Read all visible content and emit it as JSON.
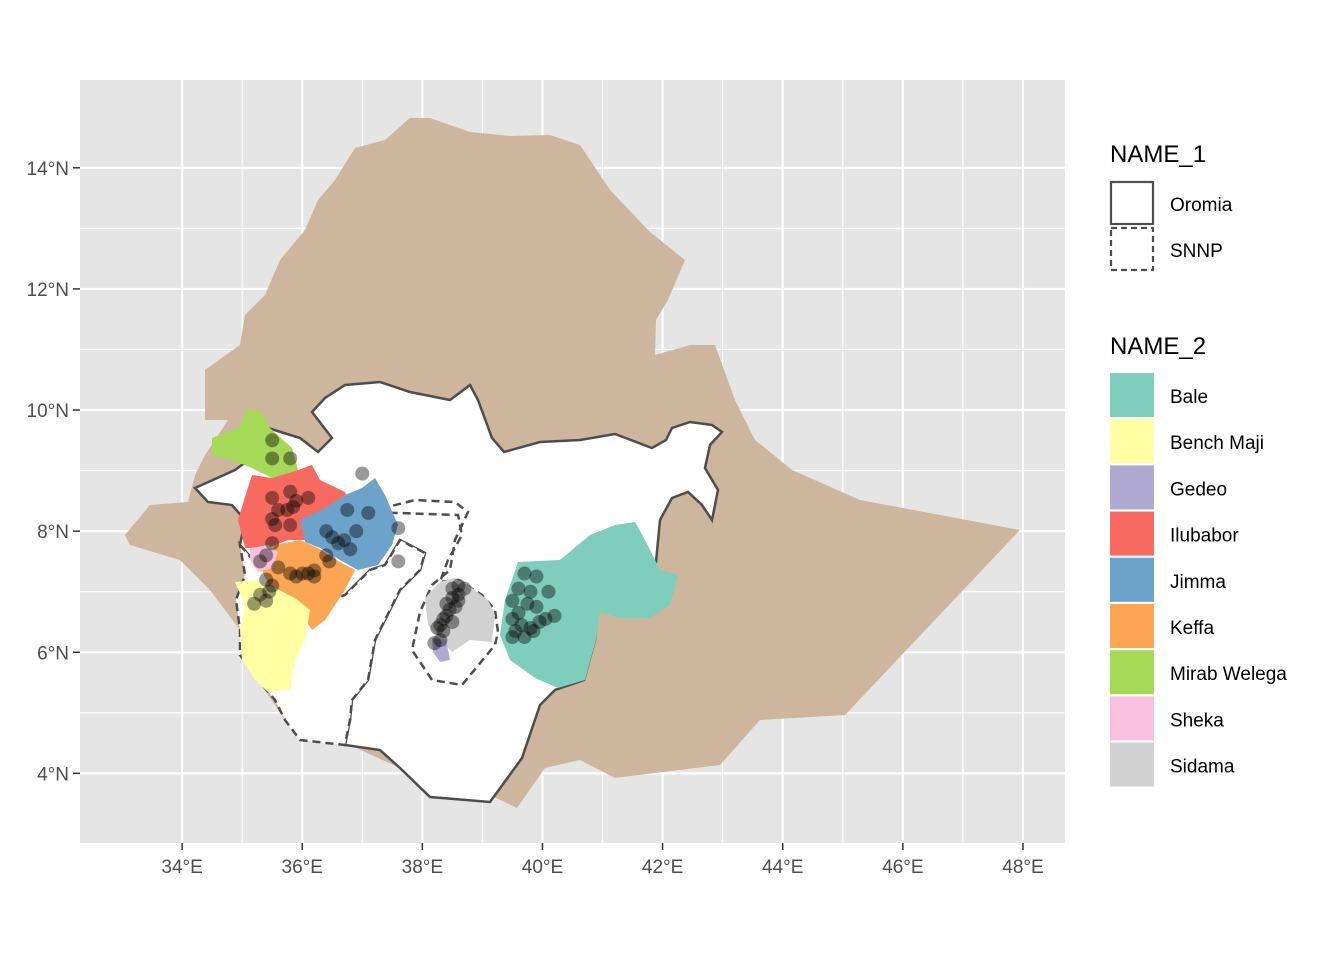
{
  "map": {
    "region": "Ethiopia",
    "lon_range": [
      32.3,
      48.7
    ],
    "lat_range": [
      2.85,
      15.45
    ],
    "x_ticks": [
      {
        "value": 34,
        "label": "34°E"
      },
      {
        "value": 36,
        "label": "36°E"
      },
      {
        "value": 38,
        "label": "38°E"
      },
      {
        "value": 40,
        "label": "40°E"
      },
      {
        "value": 42,
        "label": "42°E"
      },
      {
        "value": 44,
        "label": "44°E"
      },
      {
        "value": 46,
        "label": "46°E"
      },
      {
        "value": 48,
        "label": "48°E"
      }
    ],
    "y_ticks": [
      {
        "value": 4,
        "label": "4°N"
      },
      {
        "value": 6,
        "label": "6°N"
      },
      {
        "value": 8,
        "label": "8°N"
      },
      {
        "value": 10,
        "label": "10°N"
      },
      {
        "value": 12,
        "label": "12°N"
      },
      {
        "value": 14,
        "label": "14°N"
      }
    ],
    "colors": {
      "panel": "#e5e5e5",
      "grid": "#ffffff",
      "country": "#cdb59e",
      "region_fill": "#ffffff",
      "region_border": "#4d4d4d",
      "points": "#000000"
    }
  },
  "legend": {
    "name1": {
      "title": "NAME_1",
      "items": [
        {
          "label": "Oromia",
          "linetype": "solid"
        },
        {
          "label": "SNNP",
          "linetype": "dashed"
        }
      ]
    },
    "name2": {
      "title": "NAME_2",
      "items": [
        {
          "label": "Bale",
          "color": "#7fcdbb"
        },
        {
          "label": "Bench Maji",
          "color": "#ffffa3"
        },
        {
          "label": "Gedeo",
          "color": "#b0aad2"
        },
        {
          "label": "Ilubabor",
          "color": "#f8695f"
        },
        {
          "label": "Jimma",
          "color": "#6da2cb"
        },
        {
          "label": "Keffa",
          "color": "#fca552"
        },
        {
          "label": "Mirab Welega",
          "color": "#a5d956"
        },
        {
          "label": "Sheka",
          "color": "#f8c1df"
        },
        {
          "label": "Sidama",
          "color": "#d1d1d1"
        }
      ]
    }
  },
  "points": [
    [
      35.5,
      9.5
    ],
    [
      35.5,
      9.2
    ],
    [
      35.8,
      9.2
    ],
    [
      35.8,
      8.65
    ],
    [
      35.5,
      8.55
    ],
    [
      35.9,
      8.5
    ],
    [
      36.1,
      8.55
    ],
    [
      35.6,
      8.35
    ],
    [
      35.75,
      8.35
    ],
    [
      35.85,
      8.4
    ],
    [
      35.5,
      8.2
    ],
    [
      35.55,
      8.1
    ],
    [
      35.8,
      8.1
    ],
    [
      35.5,
      7.8
    ],
    [
      35.4,
      7.6
    ],
    [
      35.3,
      7.5
    ],
    [
      35.6,
      7.4
    ],
    [
      35.8,
      7.3
    ],
    [
      35.9,
      7.25
    ],
    [
      36.0,
      7.3
    ],
    [
      36.1,
      7.3
    ],
    [
      36.2,
      7.25
    ],
    [
      36.2,
      7.35
    ],
    [
      35.4,
      7.2
    ],
    [
      35.5,
      7.1
    ],
    [
      35.45,
      7.0
    ],
    [
      35.3,
      6.95
    ],
    [
      35.2,
      6.8
    ],
    [
      35.4,
      6.85
    ],
    [
      36.4,
      8.0
    ],
    [
      36.5,
      7.9
    ],
    [
      36.6,
      7.8
    ],
    [
      36.7,
      7.85
    ],
    [
      36.8,
      7.7
    ],
    [
      36.4,
      7.6
    ],
    [
      36.45,
      7.5
    ],
    [
      36.9,
      8.0
    ],
    [
      37.0,
      8.95
    ],
    [
      37.6,
      8.05
    ],
    [
      37.6,
      7.5
    ],
    [
      36.75,
      8.35
    ],
    [
      37.1,
      8.3
    ],
    [
      38.5,
      7.05
    ],
    [
      38.6,
      7.1
    ],
    [
      38.7,
      7.05
    ],
    [
      38.6,
      6.95
    ],
    [
      38.5,
      6.9
    ],
    [
      38.4,
      6.8
    ],
    [
      38.45,
      6.7
    ],
    [
      38.4,
      6.6
    ],
    [
      38.35,
      6.55
    ],
    [
      38.3,
      6.45
    ],
    [
      38.25,
      6.4
    ],
    [
      38.35,
      6.35
    ],
    [
      38.3,
      6.2
    ],
    [
      38.2,
      6.15
    ],
    [
      38.5,
      6.5
    ],
    [
      38.55,
      6.75
    ],
    [
      38.6,
      6.85
    ],
    [
      39.7,
      7.3
    ],
    [
      39.9,
      7.25
    ],
    [
      39.6,
      7.05
    ],
    [
      39.8,
      7.0
    ],
    [
      40.1,
      7.0
    ],
    [
      39.5,
      6.85
    ],
    [
      39.75,
      6.8
    ],
    [
      39.9,
      6.75
    ],
    [
      40.2,
      6.6
    ],
    [
      39.6,
      6.65
    ],
    [
      39.5,
      6.55
    ],
    [
      39.55,
      6.35
    ],
    [
      39.8,
      6.4
    ],
    [
      39.95,
      6.5
    ],
    [
      40.05,
      6.55
    ],
    [
      39.5,
      6.25
    ],
    [
      39.7,
      6.25
    ],
    [
      39.85,
      6.35
    ],
    [
      39.65,
      6.45
    ]
  ]
}
